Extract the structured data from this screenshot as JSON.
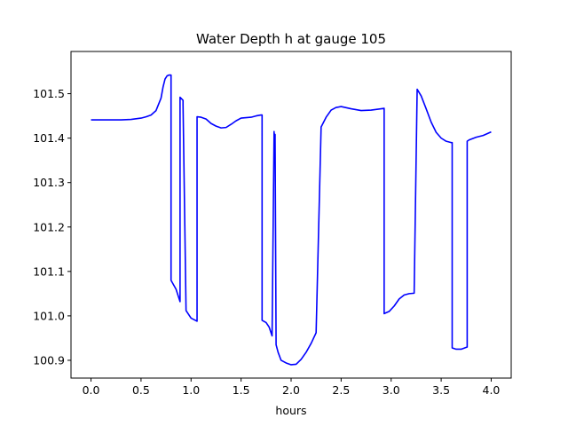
{
  "chart_data": {
    "type": "line",
    "title": "Water Depth h at gauge 105",
    "xlabel": "hours",
    "ylabel": "",
    "xlim": [
      -0.2,
      4.2
    ],
    "ylim": [
      100.86,
      101.595
    ],
    "xticks": [
      0.0,
      0.5,
      1.0,
      1.5,
      2.0,
      2.5,
      3.0,
      3.5,
      4.0
    ],
    "xtick_labels": [
      "0.0",
      "0.5",
      "1.0",
      "1.5",
      "2.0",
      "2.5",
      "3.0",
      "3.5",
      "4.0"
    ],
    "yticks": [
      100.9,
      101.0,
      101.1,
      101.2,
      101.3,
      101.4,
      101.5
    ],
    "ytick_labels": [
      "100.9",
      "101.0",
      "101.1",
      "101.2",
      "101.3",
      "101.4",
      "101.5"
    ],
    "grid": false,
    "series": [
      {
        "color": "#0000ff",
        "x": [
          0.0,
          0.1,
          0.2,
          0.3,
          0.4,
          0.5,
          0.55,
          0.6,
          0.65,
          0.7,
          0.72,
          0.74,
          0.76,
          0.78,
          0.8,
          0.8,
          0.85,
          0.89,
          0.89,
          0.92,
          0.92,
          0.95,
          1.0,
          1.06,
          1.06,
          1.1,
          1.15,
          1.2,
          1.25,
          1.3,
          1.35,
          1.4,
          1.45,
          1.5,
          1.55,
          1.6,
          1.65,
          1.7,
          1.71,
          1.71,
          1.75,
          1.78,
          1.81,
          1.83,
          1.83,
          1.84,
          1.84,
          1.85,
          1.87,
          1.9,
          1.95,
          2.0,
          2.05,
          2.1,
          2.15,
          2.2,
          2.25,
          2.3,
          2.3,
          2.35,
          2.4,
          2.45,
          2.5,
          2.6,
          2.7,
          2.8,
          2.9,
          2.93,
          2.93,
          2.98,
          3.03,
          3.08,
          3.13,
          3.18,
          3.23,
          3.26,
          3.26,
          3.3,
          3.35,
          3.4,
          3.45,
          3.5,
          3.55,
          3.6,
          3.61,
          3.61,
          3.65,
          3.7,
          3.76,
          3.76,
          3.78,
          3.85,
          3.92,
          3.96,
          4.0
        ],
        "y": [
          101.441,
          101.441,
          101.441,
          101.441,
          101.442,
          101.445,
          101.448,
          101.452,
          101.462,
          101.49,
          101.515,
          101.533,
          101.54,
          101.542,
          101.542,
          101.08,
          101.06,
          101.032,
          101.492,
          101.485,
          101.475,
          101.012,
          100.995,
          100.988,
          101.448,
          101.447,
          101.443,
          101.433,
          101.427,
          101.423,
          101.424,
          101.431,
          101.439,
          101.445,
          101.446,
          101.447,
          101.45,
          101.452,
          101.452,
          100.99,
          100.985,
          100.975,
          100.955,
          101.415,
          101.41,
          101.408,
          101.4,
          100.935,
          100.918,
          100.9,
          100.894,
          100.89,
          100.891,
          100.902,
          100.918,
          100.938,
          100.962,
          101.425,
          101.425,
          101.447,
          101.463,
          101.469,
          101.471,
          101.466,
          101.462,
          101.463,
          101.466,
          101.467,
          101.005,
          101.01,
          101.022,
          101.038,
          101.047,
          101.05,
          101.051,
          101.51,
          101.51,
          101.495,
          101.466,
          101.436,
          101.413,
          101.4,
          101.393,
          101.39,
          101.39,
          100.928,
          100.925,
          100.925,
          100.93,
          101.393,
          101.396,
          101.402,
          101.406,
          101.41,
          101.414
        ]
      }
    ]
  }
}
